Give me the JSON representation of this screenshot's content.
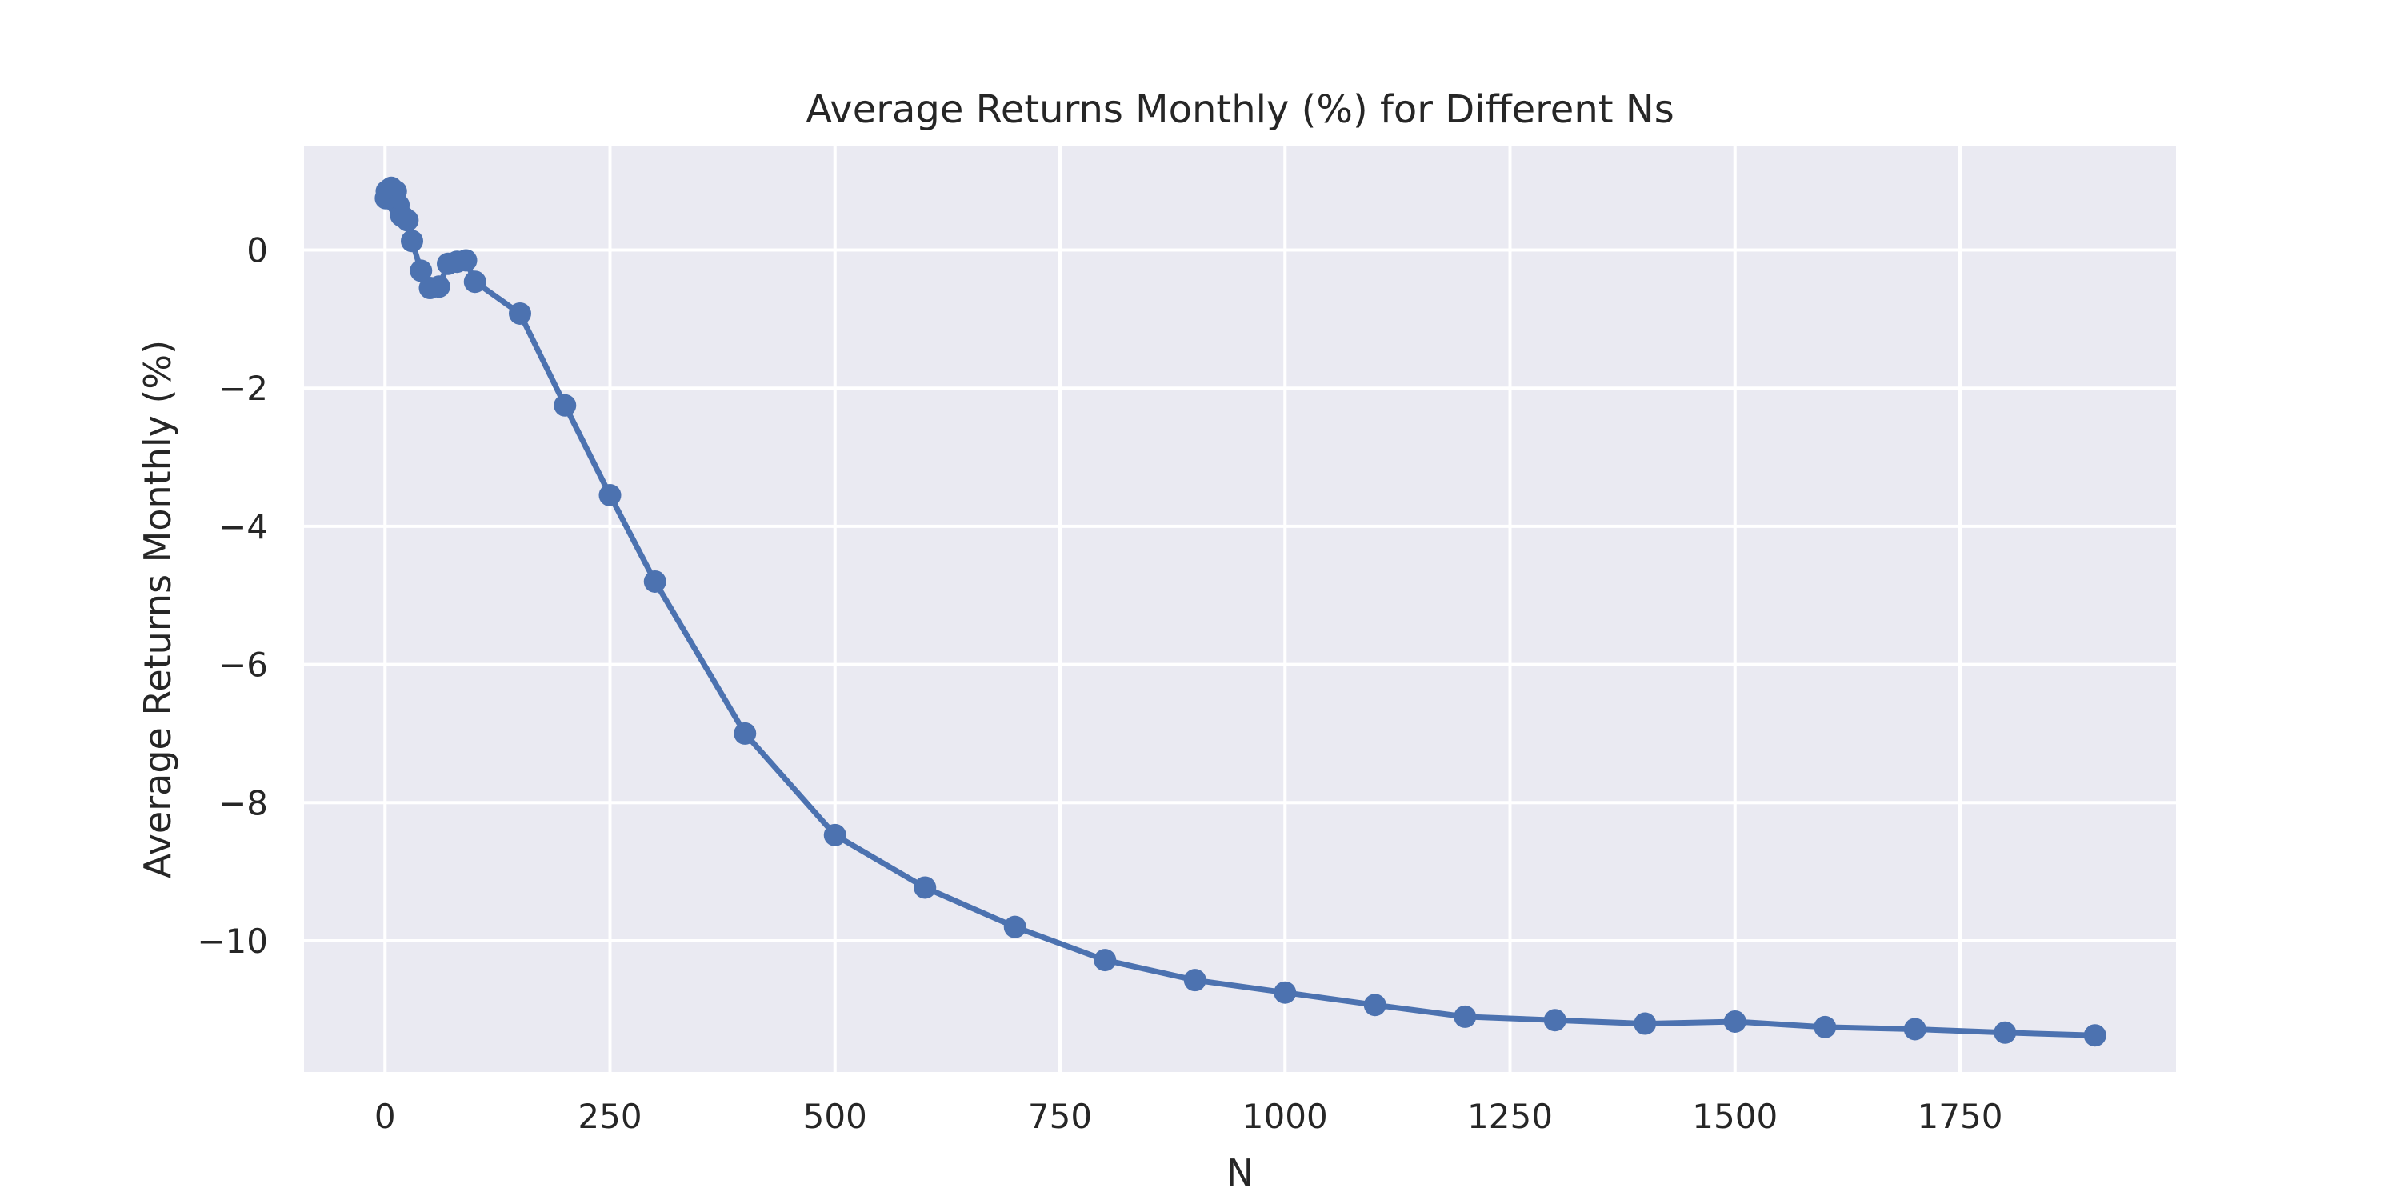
{
  "chart_data": {
    "type": "line",
    "title": "Average Returns Monthly (%) for Different Ns",
    "xlabel": "N",
    "ylabel": "Average Returns Monthly (%)",
    "xlim": [
      -90,
      1990
    ],
    "ylim": [
      -11.9,
      1.5
    ],
    "xticks": [
      0,
      250,
      500,
      750,
      1000,
      1250,
      1500,
      1750
    ],
    "xtick_labels": [
      "0",
      "250",
      "500",
      "750",
      "1000",
      "1250",
      "1500",
      "1750"
    ],
    "yticks": [
      0,
      -2,
      -4,
      -6,
      -8,
      -10
    ],
    "ytick_labels": [
      "0",
      "−2",
      "−4",
      "−6",
      "−8",
      "−10"
    ],
    "grid": true,
    "legend": "none",
    "colors": {
      "series": "#4c72b0",
      "plot_bg": "#eaeaf2",
      "grid": "#ffffff",
      "text": "#262626"
    },
    "series": [
      {
        "marker": "circle",
        "x": [
          1,
          2,
          3,
          5,
          7,
          10,
          12,
          15,
          18,
          20,
          25,
          30,
          40,
          50,
          60,
          70,
          80,
          90,
          100,
          150,
          200,
          250,
          300,
          400,
          500,
          600,
          700,
          800,
          900,
          1000,
          1100,
          1200,
          1300,
          1400,
          1500,
          1600,
          1700,
          1800,
          1900
        ],
        "y": [
          0.75,
          0.85,
          0.8,
          0.88,
          0.9,
          0.72,
          0.85,
          0.65,
          0.5,
          0.48,
          0.43,
          0.13,
          -0.3,
          -0.55,
          -0.53,
          -0.2,
          -0.17,
          -0.15,
          -0.46,
          -0.92,
          -2.25,
          -3.55,
          -4.8,
          -7.0,
          -8.47,
          -9.23,
          -9.8,
          -10.28,
          -10.57,
          -10.75,
          -10.93,
          -11.1,
          -11.15,
          -11.2,
          -11.17,
          -11.25,
          -11.28,
          -11.33,
          -11.37
        ]
      }
    ]
  }
}
